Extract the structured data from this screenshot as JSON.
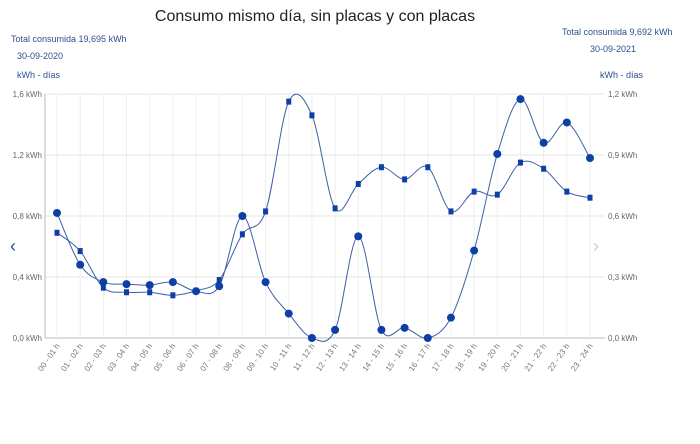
{
  "chart_data": {
    "type": "line",
    "title": "Consumo mismo día, sin placas y con placas",
    "categories": [
      "00 - 01 h",
      "01 - 02 h",
      "02 - 03 h",
      "03 - 04 h",
      "04 - 05 h",
      "05 - 06 h",
      "06 - 07 h",
      "07 - 08 h",
      "08 - 09 h",
      "09 - 10 h",
      "10 - 11 h",
      "11 - 12 h",
      "12 - 13 h",
      "13 - 14 h",
      "14 - 15 h",
      "15 - 16 h",
      "16 - 17 h",
      "17 - 18 h",
      "18 - 19 h",
      "19 - 20 h",
      "20 - 21 h",
      "21 - 22 h",
      "22 - 23 h",
      "23 - 24 h"
    ],
    "left_axis": {
      "total": "Total consumida  19,695 kWh",
      "date": "30-09-2020",
      "label": "kWh - días",
      "ylim": [
        0,
        1.6
      ],
      "ticks": [
        "0,0 kWh",
        "0,4 kWh",
        "0,8 kWh",
        "1,2 kWh",
        "1,6 kWh"
      ]
    },
    "right_axis": {
      "total": "Total consumida  9,692 kWh",
      "date": "30-09-2021",
      "label": "kWh - días",
      "ylim": [
        0,
        1.2
      ],
      "ticks": [
        "0,0 kWh",
        "0,3 kWh",
        "0,6 kWh",
        "0,9 kWh",
        "1,2 kWh"
      ]
    },
    "series": [
      {
        "axis": "left",
        "marker": "square",
        "values": [
          0.69,
          0.57,
          0.33,
          0.3,
          0.3,
          0.28,
          0.31,
          0.38,
          0.68,
          0.83,
          1.55,
          1.46,
          0.85,
          1.01,
          1.12,
          1.04,
          1.12,
          0.83,
          0.96,
          0.94,
          1.15,
          1.11,
          0.96,
          0.92
        ]
      },
      {
        "axis": "right",
        "marker": "circle",
        "values": [
          0.615,
          0.36,
          0.275,
          0.265,
          0.26,
          0.275,
          0.23,
          0.255,
          0.6,
          0.275,
          0.12,
          0.0,
          0.04,
          0.5,
          0.04,
          0.05,
          0.0,
          0.1,
          0.43,
          0.905,
          1.175,
          0.96,
          1.06,
          0.885
        ]
      }
    ],
    "grid": true,
    "colors": {
      "line": "#3d5fa8",
      "marker": "#0d3fa6",
      "text": "#2e4f8f"
    }
  },
  "nav": {
    "prev": "‹",
    "next": "›"
  }
}
